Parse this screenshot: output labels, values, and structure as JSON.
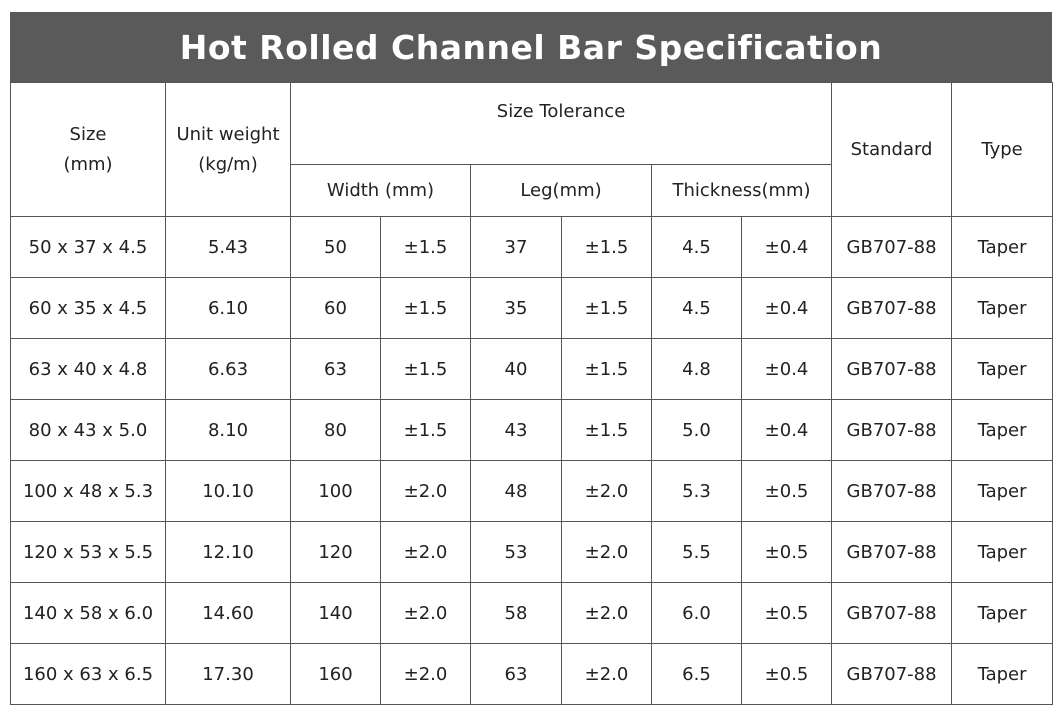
{
  "title": "Hot Rolled Channel Bar Specification",
  "header": {
    "size": [
      "Size",
      "(mm)"
    ],
    "unit_weight": [
      "Unit weight",
      "(kg/m)"
    ],
    "size_tolerance": "Size Tolerance",
    "width": "Width (mm)",
    "leg": "Leg(mm)",
    "thickness": "Thickness(mm)",
    "standard": "Standard",
    "type": "Type"
  },
  "table": {
    "rows": [
      [
        "50 x 37 x 4.5",
        "5.43",
        "50",
        "±1.5",
        "37",
        "±1.5",
        "4.5",
        "±0.4",
        "GB707-88",
        "Taper"
      ],
      [
        "60 x 35 x 4.5",
        "6.10",
        "60",
        "±1.5",
        "35",
        "±1.5",
        "4.5",
        "±0.4",
        "GB707-88",
        "Taper"
      ],
      [
        "63 x 40 x 4.8",
        "6.63",
        "63",
        "±1.5",
        "40",
        "±1.5",
        "4.8",
        "±0.4",
        "GB707-88",
        "Taper"
      ],
      [
        "80 x 43 x 5.0",
        "8.10",
        "80",
        "±1.5",
        "43",
        "±1.5",
        "5.0",
        "±0.4",
        "GB707-88",
        "Taper"
      ],
      [
        "100 x 48 x 5.3",
        "10.10",
        "100",
        "±2.0",
        "48",
        "±2.0",
        "5.3",
        "±0.5",
        "GB707-88",
        "Taper"
      ],
      [
        "120 x 53 x 5.5",
        "12.10",
        "120",
        "±2.0",
        "53",
        "±2.0",
        "5.5",
        "±0.5",
        "GB707-88",
        "Taper"
      ],
      [
        "140 x 58 x 6.0",
        "14.60",
        "140",
        "±2.0",
        "58",
        "±2.0",
        "6.0",
        "±0.5",
        "GB707-88",
        "Taper"
      ],
      [
        "160 x 63 x 6.5",
        "17.30",
        "160",
        "±2.0",
        "63",
        "±2.0",
        "6.5",
        "±0.5",
        "GB707-88",
        "Taper"
      ]
    ]
  }
}
